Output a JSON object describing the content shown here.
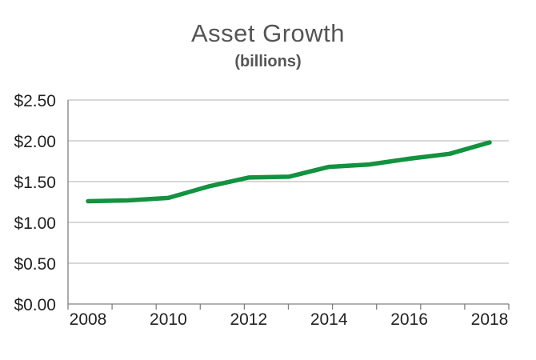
{
  "chart_data": {
    "type": "line",
    "title": "Asset Growth",
    "subtitle": "(billions)",
    "xlabel": "",
    "ylabel": "",
    "x": [
      2008,
      2009,
      2010,
      2011,
      2012,
      2013,
      2014,
      2015,
      2016,
      2017,
      2018
    ],
    "series": [
      {
        "values": [
          1.26,
          1.27,
          1.3,
          1.44,
          1.55,
          1.56,
          1.68,
          1.71,
          1.78,
          1.84,
          1.98
        ]
      }
    ],
    "ylim": [
      0,
      2.5
    ],
    "xlim": [
      2008,
      2018
    ],
    "yticks": [
      {
        "value": 0,
        "label": "$0.00"
      },
      {
        "value": 0.5,
        "label": "$0.50"
      },
      {
        "value": 1.0,
        "label": "$1.00"
      },
      {
        "value": 1.5,
        "label": "$1.50"
      },
      {
        "value": 2.0,
        "label": "$2.00"
      },
      {
        "value": 2.5,
        "label": "$2.50"
      }
    ],
    "xticks": [
      {
        "value": 2008,
        "label": "2008"
      },
      {
        "value": 2010,
        "label": "2010"
      },
      {
        "value": 2012,
        "label": "2012"
      },
      {
        "value": 2014,
        "label": "2014"
      },
      {
        "value": 2016,
        "label": "2016"
      },
      {
        "value": 2018,
        "label": "2018"
      }
    ],
    "grid": true,
    "legend": "none",
    "line_color": "#13923f",
    "grid_color": "#bfbfbf",
    "axis_color": "#808080"
  }
}
